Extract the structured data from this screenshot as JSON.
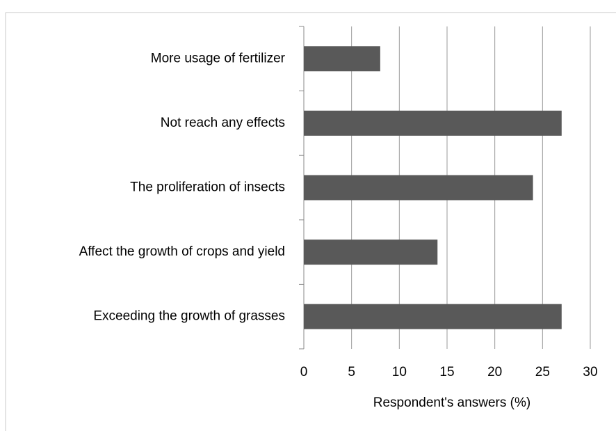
{
  "chart_data": {
    "type": "bar",
    "orientation": "horizontal",
    "categories": [
      "More usage of fertilizer",
      "Not reach any effects",
      "The proliferation of insects",
      "Affect the growth of crops and yield",
      "Exceeding the growth of grasses"
    ],
    "values": [
      8,
      27,
      24,
      14,
      27
    ],
    "color": "#595959",
    "xlabel": "Respondent's answers (%)",
    "xlim": [
      0,
      30
    ],
    "xticks": [
      0,
      5,
      10,
      15,
      20,
      25,
      30
    ],
    "grid": true
  }
}
